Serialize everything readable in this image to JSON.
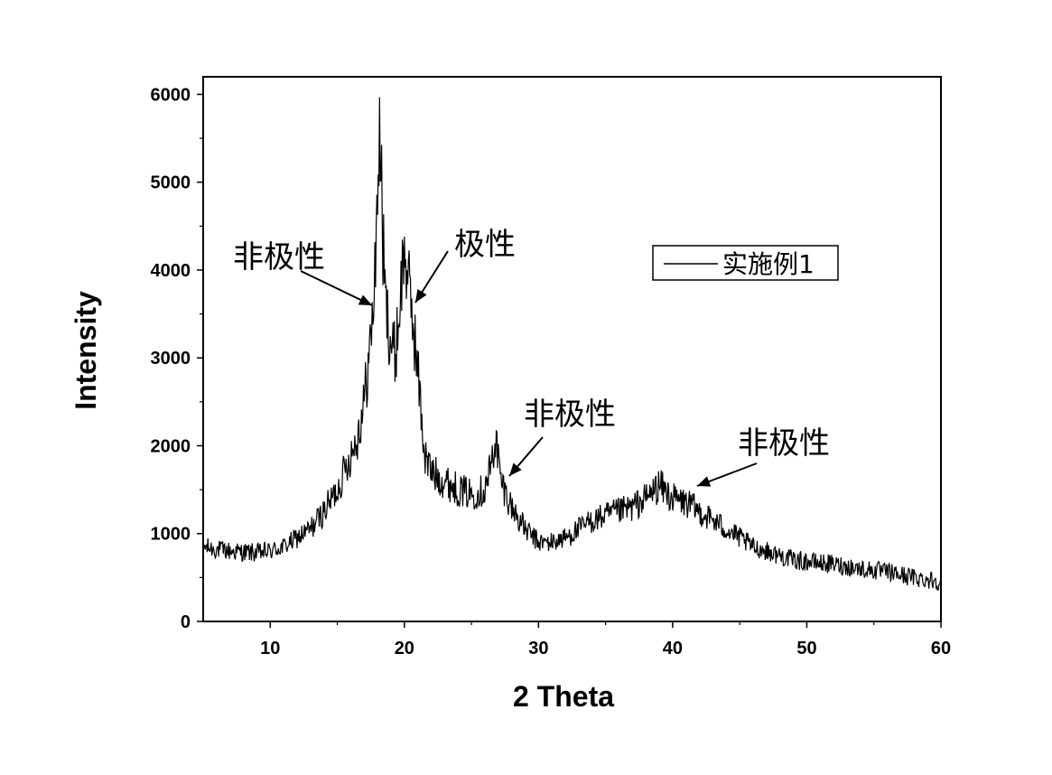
{
  "chart_data": {
    "type": "line",
    "xlabel": "2 Theta",
    "ylabel": "Intensity",
    "xlim": [
      5,
      60
    ],
    "ylim": [
      0,
      6200
    ],
    "xticks": [
      10,
      20,
      30,
      40,
      50,
      60
    ],
    "yticks": [
      0,
      1000,
      2000,
      3000,
      4000,
      5000,
      6000
    ],
    "grid": false,
    "legend": {
      "placement": "top-right",
      "entries": [
        "实施例1"
      ]
    },
    "series": [
      {
        "name": "实施例1",
        "color": "#000000",
        "x": [
          5,
          6,
          7,
          8,
          9,
          10,
          11,
          12,
          13,
          14,
          15,
          15.5,
          16,
          16.5,
          17,
          17.5,
          17.8,
          18.0,
          18.2,
          18.4,
          18.6,
          18.8,
          19.0,
          19.3,
          19.6,
          19.9,
          20.1,
          20.3,
          20.6,
          20.9,
          21.2,
          21.5,
          22,
          23,
          24,
          25,
          26,
          26.5,
          26.8,
          27.2,
          28,
          29,
          30,
          31,
          32,
          33,
          34,
          35,
          36,
          37,
          38,
          39,
          40,
          41,
          42,
          43,
          44,
          45,
          46,
          47,
          48,
          49,
          50,
          52,
          54,
          56,
          58,
          59,
          60
        ],
        "y": [
          850,
          820,
          800,
          790,
          780,
          800,
          850,
          950,
          1050,
          1250,
          1500,
          1700,
          1900,
          2100,
          2500,
          3200,
          3900,
          5000,
          5500,
          4300,
          3600,
          3400,
          3200,
          3000,
          3500,
          4100,
          4200,
          3800,
          3500,
          3000,
          2500,
          1900,
          1700,
          1600,
          1500,
          1450,
          1500,
          1800,
          2100,
          1600,
          1300,
          1050,
          900,
          900,
          950,
          1050,
          1150,
          1200,
          1250,
          1300,
          1400,
          1550,
          1400,
          1350,
          1250,
          1150,
          1050,
          950,
          850,
          800,
          750,
          700,
          680,
          650,
          600,
          560,
          500,
          480,
          460
        ]
      }
    ],
    "annotations": [
      {
        "text": "非极性",
        "x": 18.0,
        "y": 3450
      },
      {
        "text": "极性",
        "x": 20.5,
        "y": 3550
      },
      {
        "text": "非极性",
        "x": 27.6,
        "y": 1570
      },
      {
        "text": "非极性",
        "x": 41.5,
        "y": 1460
      }
    ]
  }
}
